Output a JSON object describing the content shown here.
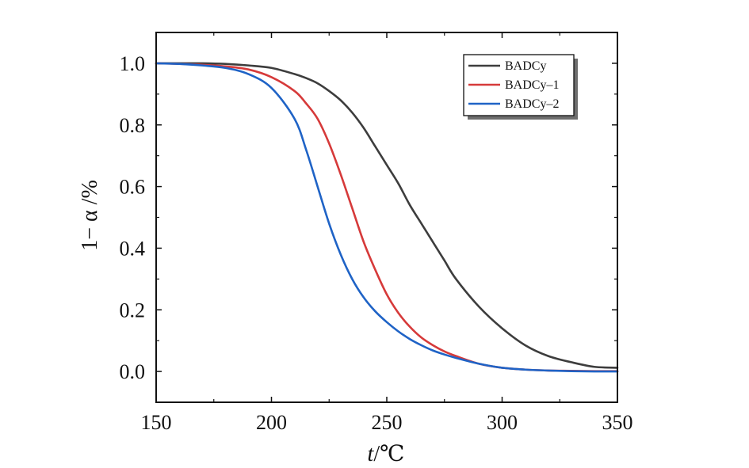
{
  "chart_data": {
    "type": "line",
    "xlabel": "t/℃",
    "xlabel_italic": "t",
    "xlabel_rest": "/℃",
    "ylabel": "1− α /%",
    "xlim": [
      150,
      350
    ],
    "ylim": [
      -0.1,
      1.1
    ],
    "x_ticks": [
      150,
      200,
      250,
      300,
      350
    ],
    "x_tick_labels": [
      "150",
      "200",
      "250",
      "300",
      "350"
    ],
    "y_ticks": [
      0.0,
      0.2,
      0.4,
      0.6,
      0.8,
      1.0
    ],
    "y_tick_labels": [
      "0.0",
      "0.2",
      "0.4",
      "0.6",
      "0.8",
      "1.0"
    ],
    "grid": false,
    "legend_position": "top-right",
    "x": [
      150,
      160,
      170,
      180,
      190,
      200,
      210,
      215,
      220,
      225,
      230,
      235,
      240,
      245,
      250,
      255,
      260,
      265,
      270,
      275,
      280,
      290,
      300,
      310,
      320,
      330,
      340,
      350
    ],
    "series": [
      {
        "name": "BADCy",
        "color": "#3d3d3d",
        "values": [
          1.0,
          1.0,
          1.0,
          0.998,
          0.993,
          0.985,
          0.965,
          0.952,
          0.935,
          0.91,
          0.88,
          0.84,
          0.79,
          0.73,
          0.67,
          0.61,
          0.54,
          0.48,
          0.42,
          0.36,
          0.3,
          0.21,
          0.14,
          0.085,
          0.05,
          0.03,
          0.015,
          0.012
        ]
      },
      {
        "name": "BADCy–1",
        "color": "#d63a3a",
        "values": [
          1.0,
          0.998,
          0.995,
          0.99,
          0.98,
          0.955,
          0.91,
          0.87,
          0.82,
          0.74,
          0.64,
          0.53,
          0.42,
          0.33,
          0.25,
          0.19,
          0.145,
          0.11,
          0.085,
          0.065,
          0.05,
          0.025,
          0.012,
          0.006,
          0.003,
          0.002,
          0.001,
          0.001
        ]
      },
      {
        "name": "BADCy–2",
        "color": "#1f63c6",
        "values": [
          1.0,
          0.998,
          0.993,
          0.985,
          0.965,
          0.92,
          0.82,
          0.72,
          0.6,
          0.48,
          0.38,
          0.3,
          0.24,
          0.195,
          0.16,
          0.13,
          0.105,
          0.085,
          0.068,
          0.055,
          0.044,
          0.025,
          0.012,
          0.006,
          0.003,
          0.001,
          0.0,
          0.0
        ]
      }
    ]
  }
}
